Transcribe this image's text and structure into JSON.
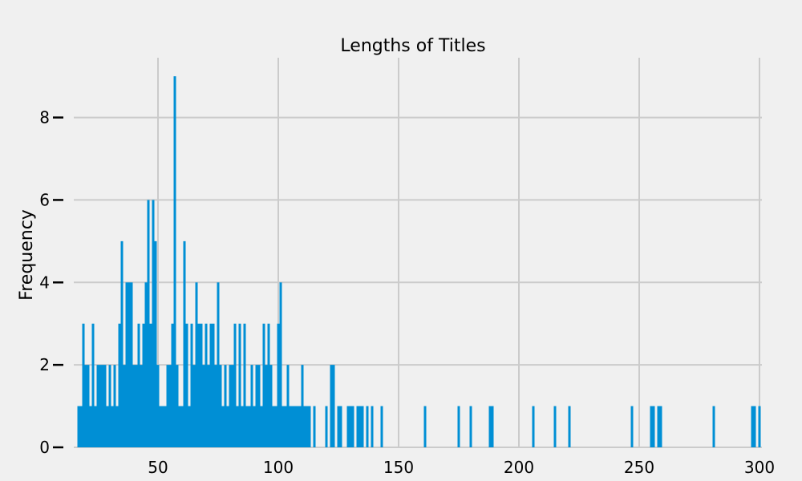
{
  "chart_data": {
    "type": "bar",
    "title": "Lengths of Titles",
    "xlabel": "",
    "ylabel": "Frequency",
    "xlim": [
      15,
      301
    ],
    "ylim": [
      0,
      9.45
    ],
    "xticks": [
      50,
      100,
      150,
      200,
      250,
      300
    ],
    "yticks": [
      0,
      2,
      4,
      6,
      8
    ],
    "grid": true,
    "bar_color": "#008fd5",
    "x": [
      17,
      18,
      19,
      20,
      21,
      22,
      23,
      24,
      25,
      26,
      27,
      28,
      29,
      30,
      31,
      32,
      33,
      34,
      35,
      36,
      37,
      38,
      39,
      40,
      41,
      42,
      43,
      44,
      45,
      46,
      47,
      48,
      49,
      50,
      51,
      52,
      53,
      54,
      55,
      56,
      57,
      58,
      59,
      60,
      61,
      62,
      63,
      64,
      65,
      66,
      67,
      68,
      69,
      70,
      71,
      72,
      73,
      74,
      75,
      76,
      77,
      78,
      79,
      80,
      81,
      82,
      83,
      84,
      85,
      86,
      87,
      88,
      89,
      90,
      91,
      92,
      93,
      94,
      95,
      96,
      97,
      98,
      99,
      100,
      101,
      102,
      103,
      104,
      105,
      106,
      107,
      108,
      109,
      110,
      111,
      112,
      113,
      115,
      120,
      122,
      123,
      125,
      126,
      129,
      130,
      131,
      133,
      134,
      135,
      137,
      139,
      143,
      161,
      175,
      180,
      188,
      189,
      206,
      215,
      221,
      247,
      255,
      256,
      258,
      259,
      281,
      297,
      298,
      300
    ],
    "values": [
      1,
      1,
      3,
      2,
      2,
      1,
      3,
      1,
      2,
      2,
      2,
      2,
      1,
      2,
      1,
      2,
      1,
      3,
      5,
      2,
      4,
      4,
      4,
      2,
      2,
      3,
      2,
      3,
      4,
      6,
      3,
      6,
      5,
      2,
      1,
      1,
      1,
      2,
      2,
      3,
      9,
      2,
      1,
      1,
      5,
      3,
      1,
      3,
      2,
      4,
      3,
      3,
      2,
      3,
      2,
      3,
      3,
      2,
      4,
      2,
      1,
      2,
      1,
      2,
      2,
      3,
      1,
      3,
      1,
      3,
      1,
      1,
      2,
      1,
      2,
      2,
      1,
      3,
      2,
      3,
      2,
      1,
      1,
      3,
      4,
      1,
      1,
      2,
      1,
      1,
      1,
      1,
      1,
      2,
      1,
      1,
      1,
      1,
      1,
      2,
      2,
      1,
      1,
      1,
      1,
      1,
      1,
      1,
      1,
      1,
      1,
      1,
      1,
      1,
      1,
      1,
      1,
      1,
      1,
      1,
      1,
      1,
      1,
      1,
      1,
      1,
      1,
      1,
      1
    ]
  }
}
